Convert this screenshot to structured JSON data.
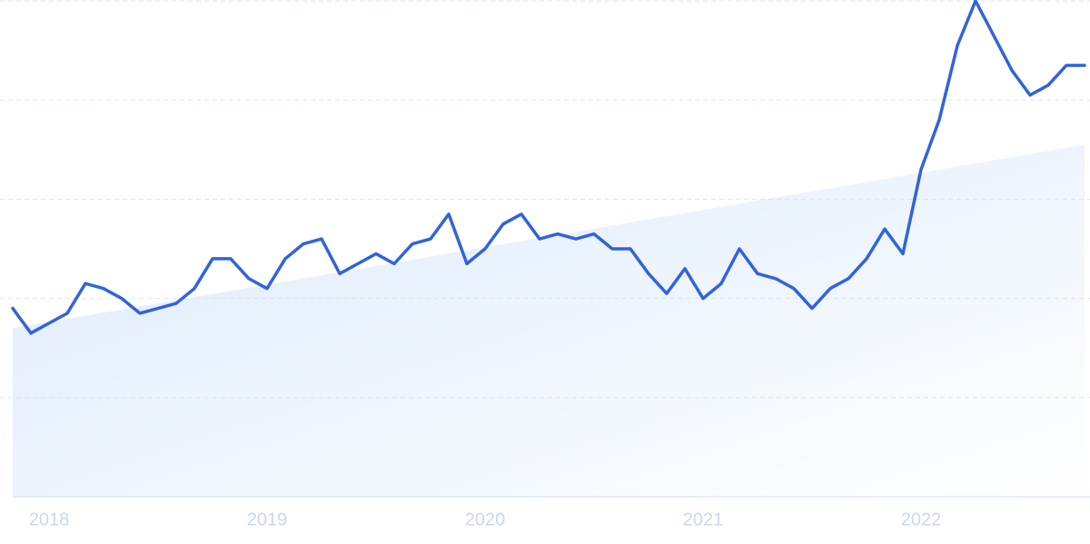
{
  "chart_data": {
    "type": "line",
    "categories": [
      null,
      null,
      "2018",
      null,
      null,
      null,
      null,
      null,
      null,
      null,
      null,
      null,
      null,
      null,
      "2019",
      null,
      null,
      null,
      null,
      null,
      null,
      null,
      null,
      null,
      null,
      null,
      "2020",
      null,
      null,
      null,
      null,
      null,
      null,
      null,
      null,
      null,
      null,
      null,
      "2021",
      null,
      null,
      null,
      null,
      null,
      null,
      null,
      null,
      null,
      null,
      null,
      "2022",
      null,
      null,
      null,
      null,
      null,
      null,
      null,
      null,
      null
    ],
    "values": [
      38,
      33,
      35,
      37,
      43,
      42,
      40,
      37,
      38,
      39,
      42,
      48,
      48,
      44,
      42,
      48,
      51,
      52,
      45,
      47,
      49,
      47,
      51,
      52,
      57,
      47,
      50,
      55,
      57,
      52,
      53,
      52,
      53,
      50,
      50,
      45,
      41,
      46,
      40,
      43,
      50,
      45,
      44,
      42,
      38,
      42,
      44,
      48,
      54,
      49,
      66,
      76,
      91,
      100,
      93,
      86,
      81,
      83,
      87,
      87
    ],
    "color": "#3163db",
    "trend": [
      34,
      71
    ],
    "trend_color": "#dceafb",
    "ylim": [
      0,
      100
    ],
    "yticks": [
      0,
      20,
      40,
      60,
      80,
      100
    ],
    "grid": true
  }
}
